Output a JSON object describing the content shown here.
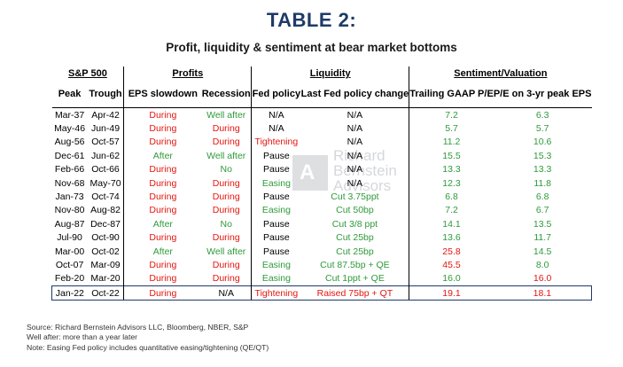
{
  "title": "TABLE 2:",
  "subtitle": "Profit, liquidity & sentiment at bear market bottoms",
  "groups": {
    "sp500": "S&P 500",
    "profits": "Profits",
    "liquidity": "Liquidity",
    "sentiment": "Sentiment/Valuation"
  },
  "columns": {
    "peak": "Peak",
    "trough": "Trough",
    "eps": "EPS slowdown",
    "recession": "Recession",
    "fed": "Fed policy",
    "change": "Last Fed policy change",
    "trailing": "Trailing GAAP P/E",
    "pe3": "P/E on 3-yr peak EPS"
  },
  "rows": [
    {
      "peak": "Mar-37",
      "trough": "Apr-42",
      "eps": "During",
      "eps_c": "red",
      "rec": "Well after",
      "rec_c": "green",
      "fed": "N/A",
      "fed_c": "black",
      "chg": "N/A",
      "chg_c": "black",
      "tpe": "7.2",
      "tpe_c": "green",
      "pe3": "6.3",
      "pe3_c": "green"
    },
    {
      "peak": "May-46",
      "trough": "Jun-49",
      "eps": "During",
      "eps_c": "red",
      "rec": "During",
      "rec_c": "red",
      "fed": "N/A",
      "fed_c": "black",
      "chg": "N/A",
      "chg_c": "black",
      "tpe": "5.7",
      "tpe_c": "green",
      "pe3": "5.7",
      "pe3_c": "green"
    },
    {
      "peak": "Aug-56",
      "trough": "Oct-57",
      "eps": "During",
      "eps_c": "red",
      "rec": "During",
      "rec_c": "red",
      "fed": "Tightening",
      "fed_c": "red",
      "chg": "N/A",
      "chg_c": "black",
      "tpe": "11.2",
      "tpe_c": "green",
      "pe3": "10.6",
      "pe3_c": "green"
    },
    {
      "peak": "Dec-61",
      "trough": "Jun-62",
      "eps": "After",
      "eps_c": "green",
      "rec": "Well after",
      "rec_c": "green",
      "fed": "Pause",
      "fed_c": "black",
      "chg": "N/A",
      "chg_c": "black",
      "tpe": "15.5",
      "tpe_c": "green",
      "pe3": "15.3",
      "pe3_c": "green"
    },
    {
      "peak": "Feb-66",
      "trough": "Oct-66",
      "eps": "During",
      "eps_c": "red",
      "rec": "No",
      "rec_c": "green",
      "fed": "Pause",
      "fed_c": "black",
      "chg": "N/A",
      "chg_c": "black",
      "tpe": "13.3",
      "tpe_c": "green",
      "pe3": "13.3",
      "pe3_c": "green"
    },
    {
      "peak": "Nov-68",
      "trough": "May-70",
      "eps": "During",
      "eps_c": "red",
      "rec": "During",
      "rec_c": "red",
      "fed": "Easing",
      "fed_c": "green",
      "chg": "N/A",
      "chg_c": "black",
      "tpe": "12.3",
      "tpe_c": "green",
      "pe3": "11.8",
      "pe3_c": "green"
    },
    {
      "peak": "Jan-73",
      "trough": "Oct-74",
      "eps": "During",
      "eps_c": "red",
      "rec": "During",
      "rec_c": "red",
      "fed": "Pause",
      "fed_c": "black",
      "chg": "Cut 3.75ppt",
      "chg_c": "green",
      "tpe": "6.8",
      "tpe_c": "green",
      "pe3": "6.8",
      "pe3_c": "green"
    },
    {
      "peak": "Nov-80",
      "trough": "Aug-82",
      "eps": "During",
      "eps_c": "red",
      "rec": "During",
      "rec_c": "red",
      "fed": "Easing",
      "fed_c": "green",
      "chg": "Cut 50bp",
      "chg_c": "green",
      "tpe": "7.2",
      "tpe_c": "green",
      "pe3": "6.7",
      "pe3_c": "green"
    },
    {
      "peak": "Aug-87",
      "trough": "Dec-87",
      "eps": "After",
      "eps_c": "green",
      "rec": "No",
      "rec_c": "green",
      "fed": "Pause",
      "fed_c": "black",
      "chg": "Cut 3/8 ppt",
      "chg_c": "green",
      "tpe": "14.1",
      "tpe_c": "green",
      "pe3": "13.5",
      "pe3_c": "green"
    },
    {
      "peak": "Jul-90",
      "trough": "Oct-90",
      "eps": "During",
      "eps_c": "red",
      "rec": "During",
      "rec_c": "red",
      "fed": "Pause",
      "fed_c": "black",
      "chg": "Cut 25bp",
      "chg_c": "green",
      "tpe": "13.6",
      "tpe_c": "green",
      "pe3": "11.7",
      "pe3_c": "green"
    },
    {
      "peak": "Mar-00",
      "trough": "Oct-02",
      "eps": "After",
      "eps_c": "green",
      "rec": "Well after",
      "rec_c": "green",
      "fed": "Pause",
      "fed_c": "black",
      "chg": "Cut 25bp",
      "chg_c": "green",
      "tpe": "25.8",
      "tpe_c": "red",
      "pe3": "14.5",
      "pe3_c": "green"
    },
    {
      "peak": "Oct-07",
      "trough": "Mar-09",
      "eps": "During",
      "eps_c": "red",
      "rec": "During",
      "rec_c": "red",
      "fed": "Easing",
      "fed_c": "green",
      "chg": "Cut 87.5bp + QE",
      "chg_c": "green",
      "tpe": "45.5",
      "tpe_c": "red",
      "pe3": "8.0",
      "pe3_c": "green"
    },
    {
      "peak": "Feb-20",
      "trough": "Mar-20",
      "eps": "During",
      "eps_c": "red",
      "rec": "During",
      "rec_c": "red",
      "fed": "Easing",
      "fed_c": "green",
      "chg": "Cut 1ppt + QE",
      "chg_c": "green",
      "tpe": "16.0",
      "tpe_c": "green",
      "pe3": "16.0",
      "pe3_c": "red"
    },
    {
      "peak": "Jan-22",
      "trough": "Oct-22",
      "eps": "During",
      "eps_c": "red",
      "rec": "N/A",
      "rec_c": "black",
      "fed": "Tightening",
      "fed_c": "red",
      "chg": "Raised 75bp + QT",
      "chg_c": "red",
      "tpe": "19.1",
      "tpe_c": "red",
      "pe3": "18.1",
      "pe3_c": "red"
    }
  ],
  "watermark": "Richard Bernstein Advisors",
  "notes": [
    "Source: Richard Bernstein Advisors LLC, Bloomberg, NBER, S&P",
    "Well after: more than a year later",
    "Note: Easing Fed policy includes quantitative easing/tightening (QE/QT)"
  ],
  "colors": {
    "title": "#1f3a68",
    "green": "#2e9a3a",
    "red": "#e3160f",
    "highlight_border": "#1f3a68"
  }
}
